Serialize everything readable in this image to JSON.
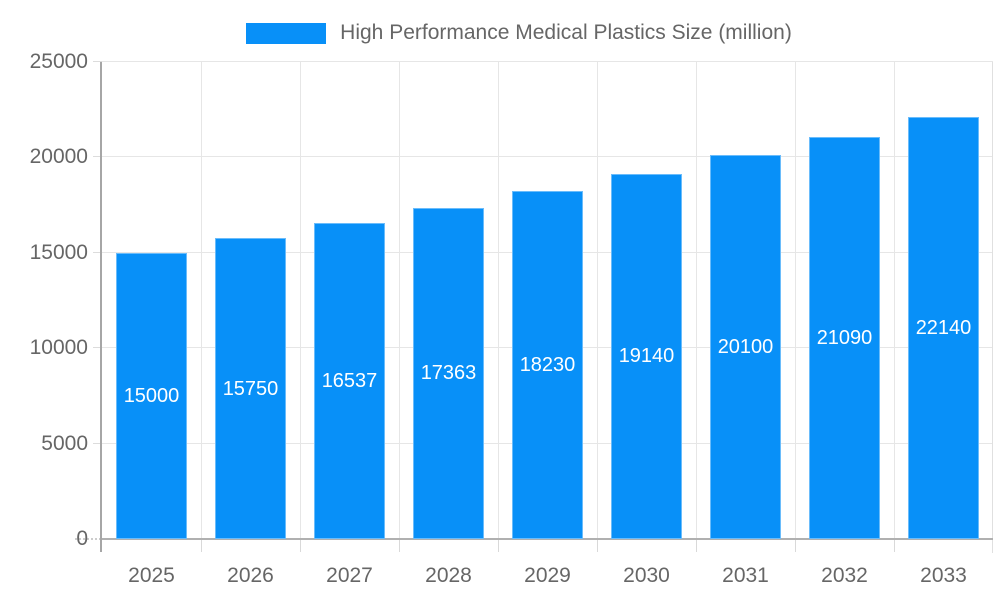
{
  "legend": {
    "label": "High Performance Medical Plastics Size (million)",
    "swatch_color": "#0890f8"
  },
  "chart_data": {
    "type": "bar",
    "title": "High Performance Medical Plastics Size (million)",
    "categories": [
      "2025",
      "2026",
      "2027",
      "2028",
      "2029",
      "2030",
      "2031",
      "2032",
      "2033"
    ],
    "values": [
      15000,
      15750,
      16537,
      17363,
      18230,
      19140,
      20100,
      21090,
      22140
    ],
    "series": [
      {
        "name": "High Performance Medical Plastics Size (million)",
        "values": [
          15000,
          15750,
          16537,
          17363,
          18230,
          19140,
          20100,
          21090,
          22140
        ]
      }
    ],
    "xlabel": "",
    "ylabel": "",
    "ylim": [
      0,
      25000
    ],
    "yticks": [
      0,
      5000,
      10000,
      15000,
      20000,
      25000
    ],
    "grid": true,
    "legend_position": "top",
    "bar_labels_inside": true,
    "bar_color": "#0890f8",
    "bar_label_color": "#ffffff",
    "axis_text_color": "#666666",
    "grid_color": "#e6e6e6",
    "axis_line_color": "#b0b0b0"
  }
}
